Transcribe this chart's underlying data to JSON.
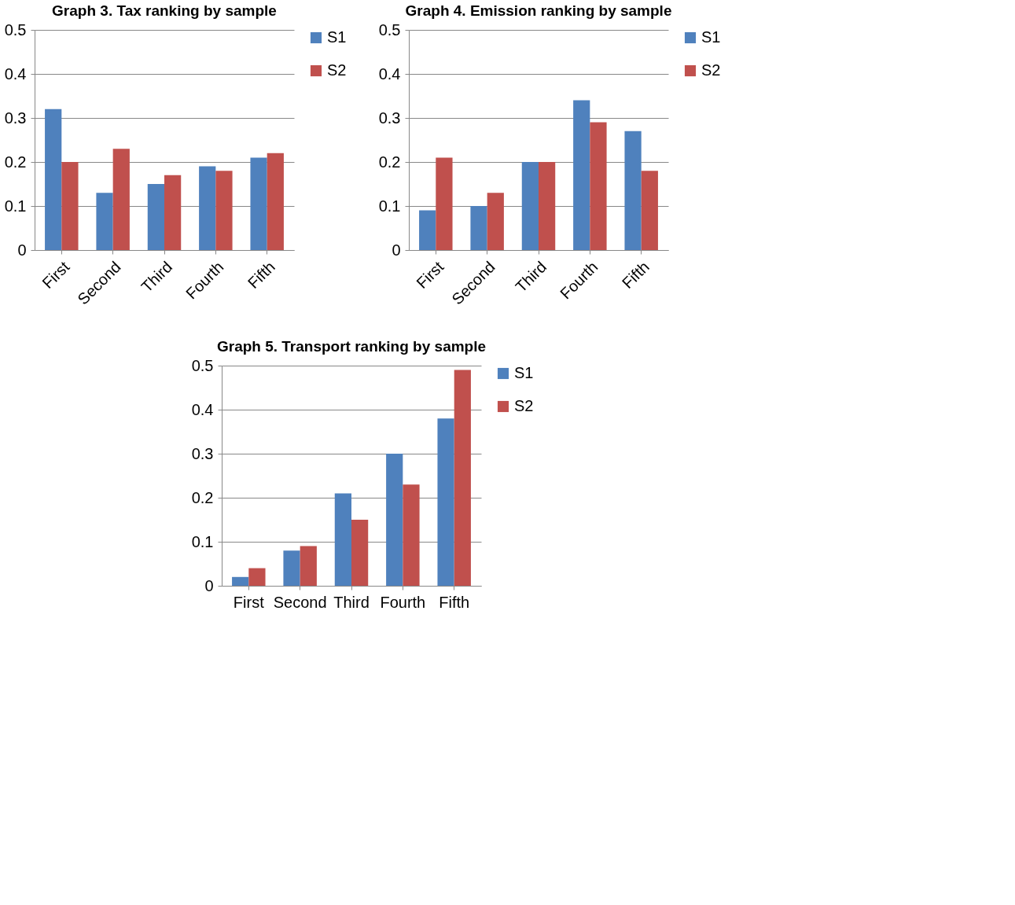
{
  "chart_data": [
    {
      "type": "bar",
      "title": "Graph 3. Tax ranking by sample",
      "categories": [
        "First",
        "Second",
        "Third",
        "Fourth",
        "Fifth"
      ],
      "ylim": [
        0,
        0.5
      ],
      "yticks": [
        0,
        0.1,
        0.2,
        0.3,
        0.4,
        0.5
      ],
      "grid": "y",
      "legend": "right",
      "series": [
        {
          "name": "S1",
          "color": "#4f81bd",
          "values": [
            0.32,
            0.13,
            0.15,
            0.19,
            0.21
          ]
        },
        {
          "name": "S2",
          "color": "#c0504d",
          "values": [
            0.2,
            0.23,
            0.17,
            0.18,
            0.22
          ]
        }
      ]
    },
    {
      "type": "bar",
      "title": "Graph 4. Emission ranking by sample",
      "categories": [
        "First",
        "Second",
        "Third",
        "Fourth",
        "Fifth"
      ],
      "ylim": [
        0,
        0.5
      ],
      "yticks": [
        0,
        0.1,
        0.2,
        0.3,
        0.4,
        0.5
      ],
      "grid": "y",
      "legend": "right",
      "series": [
        {
          "name": "S1",
          "color": "#4f81bd",
          "values": [
            0.09,
            0.1,
            0.2,
            0.34,
            0.27
          ]
        },
        {
          "name": "S2",
          "color": "#c0504d",
          "values": [
            0.21,
            0.13,
            0.2,
            0.29,
            0.18
          ]
        }
      ]
    },
    {
      "type": "bar",
      "title": "Graph 5. Transport ranking by sample",
      "categories": [
        "First",
        "Second",
        "Third",
        "Fourth",
        "Fifth"
      ],
      "ylim": [
        0,
        0.5
      ],
      "yticks": [
        0,
        0.1,
        0.2,
        0.3,
        0.4,
        0.5
      ],
      "grid": "y",
      "legend": "right",
      "series": [
        {
          "name": "S1",
          "color": "#4f81bd",
          "values": [
            0.02,
            0.08,
            0.21,
            0.3,
            0.38
          ]
        },
        {
          "name": "S2",
          "color": "#c0504d",
          "values": [
            0.04,
            0.09,
            0.15,
            0.23,
            0.49
          ]
        }
      ]
    }
  ]
}
